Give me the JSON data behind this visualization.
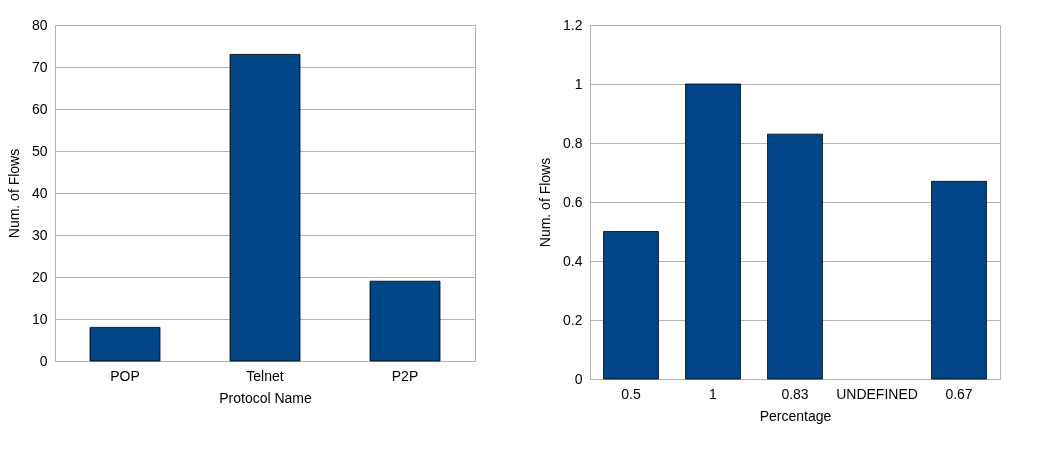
{
  "chart_data": [
    {
      "type": "bar",
      "categories": [
        "POP",
        "Telnet",
        "P2P"
      ],
      "values": [
        8,
        73,
        19
      ],
      "color": "#004586",
      "xlabel": "Protocol Name",
      "ylabel": "Num. of Flows",
      "ylim": [
        0,
        80
      ],
      "yticks": [
        0,
        10,
        20,
        30,
        40,
        50,
        60,
        70,
        80
      ],
      "grid": "y"
    },
    {
      "type": "bar",
      "categories": [
        "0.5",
        "1",
        "0.83",
        "UNDEFINED",
        "0.67"
      ],
      "values": [
        0.5,
        1,
        0.83,
        null,
        0.67
      ],
      "color": "#004586",
      "xlabel": "Percentage",
      "ylabel": "Num. of Flows",
      "ylim": [
        0,
        1.2
      ],
      "yticks": [
        0,
        0.2,
        0.4,
        0.6,
        0.8,
        1,
        1.2
      ],
      "grid": "y"
    }
  ]
}
